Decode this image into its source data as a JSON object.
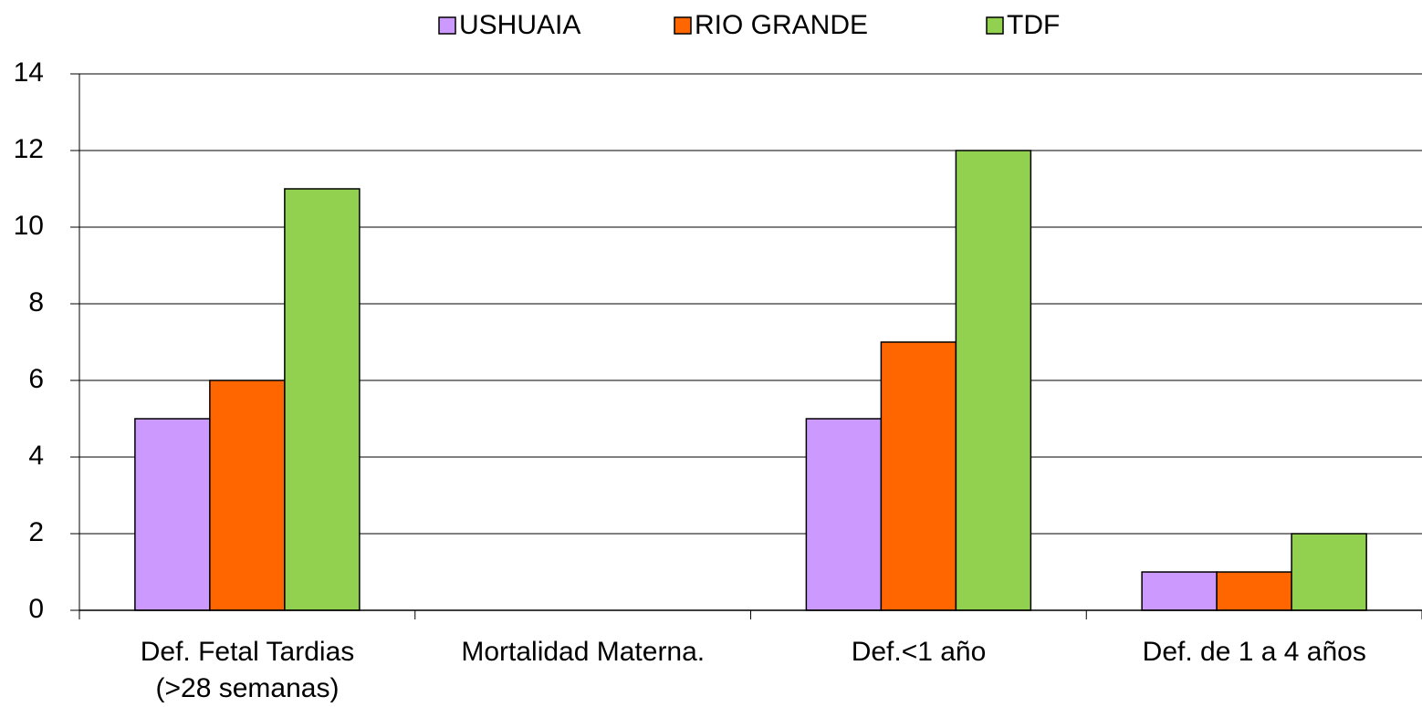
{
  "chart_data": {
    "type": "bar",
    "categories": [
      "Def. Fetal Tardias\n(>28 semanas)",
      "Mortalidad Materna.",
      "Def.<1 año",
      "Def. de 1 a 4 años"
    ],
    "series": [
      {
        "name": "USHUAIA",
        "color": "#cc99ff",
        "values": [
          5,
          0,
          5,
          1
        ]
      },
      {
        "name": "RIO GRANDE",
        "color": "#ff6600",
        "values": [
          6,
          0,
          7,
          1
        ]
      },
      {
        "name": "TDF",
        "color": "#92d050",
        "values": [
          11,
          0,
          12,
          2
        ]
      }
    ],
    "ylim": [
      0,
      14
    ],
    "yticks": [
      0,
      2,
      4,
      6,
      8,
      10,
      12,
      14
    ],
    "grid": true,
    "legend": "top"
  }
}
